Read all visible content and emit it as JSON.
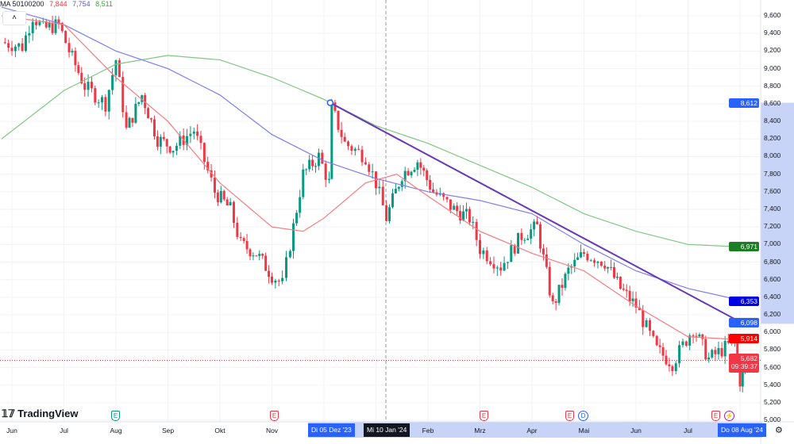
{
  "legend": {
    "label": "MA 50100200",
    "ma50": "7,844",
    "ma100": "7,754",
    "ma200": "8,511",
    "collapse_icon": "chevron-up-icon"
  },
  "colors": {
    "up": "#089981",
    "down": "#f23645",
    "ma50": "#f77c80",
    "ma100": "#7e7ef0",
    "ma200": "#81c784",
    "trend": "#673ab7",
    "highlight": "#c7d3f7"
  },
  "price_axis": [
    "9,600",
    "9,400",
    "9,200",
    "9,000",
    "8,800",
    "8,600",
    "8,400",
    "8,200",
    "8,000",
    "7,800",
    "7,600",
    "7,400",
    "7,200",
    "7,000",
    "6,800",
    "6,600",
    "6,400",
    "6,200",
    "6,000",
    "5,800",
    "5,600",
    "5,400",
    "5,200",
    "5,000"
  ],
  "price_tags": {
    "trend_start": "8,612",
    "ma200": "6,971",
    "ma100": "6,353",
    "trend_end": "6,098",
    "ma50": "5,914",
    "last": "5,682",
    "countdown": "09:39:37"
  },
  "time_axis": [
    "Jun",
    "Jul",
    "Aug",
    "Sep",
    "Okt",
    "Nov",
    "Feb",
    "Mrz",
    "Apr",
    "Mai",
    "Jun",
    "Jul"
  ],
  "time_tags": {
    "start": "Di 05 Dez '23",
    "cursor": "Mi 10 Jan '24",
    "end": "Do 08 Aug '24"
  },
  "logo": "TradingView",
  "events": [
    {
      "t": "E",
      "c": "#089981"
    },
    {
      "t": "E",
      "c": "#f23645"
    },
    {
      "t": "E",
      "c": "#f23645"
    },
    {
      "t": "E",
      "c": "#f23645"
    },
    {
      "t": "D",
      "c": "#2962ff"
    },
    {
      "t": "E",
      "c": "#f23645"
    },
    {
      "t": "⚡",
      "c": "#9c27b0"
    }
  ],
  "chart_data": {
    "type": "candlestick",
    "time_unit": "months since Jun 2023",
    "price_range": [
      5000,
      9600
    ],
    "close_path": [
      [
        -0.2,
        9300
      ],
      [
        0.2,
        9250
      ],
      [
        0.4,
        9600
      ],
      [
        0.6,
        9450
      ],
      [
        0.9,
        9500
      ],
      [
        1.1,
        9200
      ],
      [
        1.4,
        8800
      ],
      [
        1.8,
        8600
      ],
      [
        2.0,
        9100
      ],
      [
        2.2,
        8300
      ],
      [
        2.5,
        8700
      ],
      [
        2.8,
        8200
      ],
      [
        3.1,
        8100
      ],
      [
        3.5,
        8300
      ],
      [
        3.9,
        7600
      ],
      [
        4.2,
        7400
      ],
      [
        4.4,
        7000
      ],
      [
        4.7,
        6900
      ],
      [
        5.0,
        6650
      ],
      [
        5.2,
        6550
      ],
      [
        5.35,
        7000
      ],
      [
        5.6,
        7800
      ],
      [
        5.9,
        8000
      ],
      [
        6.1,
        7700
      ],
      [
        6.15,
        8550
      ],
      [
        6.4,
        8150
      ],
      [
        6.8,
        8000
      ],
      [
        7.0,
        7700
      ],
      [
        7.2,
        7300
      ],
      [
        7.5,
        7800
      ],
      [
        7.8,
        7950
      ],
      [
        8.1,
        7600
      ],
      [
        8.5,
        7400
      ],
      [
        8.8,
        7300
      ],
      [
        9.0,
        6950
      ],
      [
        9.4,
        6750
      ],
      [
        9.8,
        7100
      ],
      [
        10.1,
        7200
      ],
      [
        10.4,
        6300
      ],
      [
        10.7,
        6700
      ],
      [
        11.0,
        6900
      ],
      [
        11.4,
        6800
      ],
      [
        11.7,
        6500
      ],
      [
        12.0,
        6300
      ],
      [
        12.4,
        5800
      ],
      [
        12.7,
        5650
      ],
      [
        13.1,
        6050
      ],
      [
        13.4,
        5700
      ],
      [
        13.9,
        5900
      ],
      [
        14.0,
        5450
      ],
      [
        14.1,
        5682
      ]
    ],
    "ma50": [
      [
        -0.2,
        9600
      ],
      [
        1,
        9500
      ],
      [
        2,
        8900
      ],
      [
        3,
        8400
      ],
      [
        4,
        7700
      ],
      [
        5,
        7200
      ],
      [
        5.6,
        7150
      ],
      [
        6,
        7300
      ],
      [
        6.8,
        7700
      ],
      [
        7.4,
        7800
      ],
      [
        8,
        7550
      ],
      [
        9,
        7150
      ],
      [
        10,
        6900
      ],
      [
        11,
        6700
      ],
      [
        12,
        6300
      ],
      [
        13,
        5950
      ],
      [
        14.1,
        5914
      ]
    ],
    "ma100": [
      [
        -0.2,
        9700
      ],
      [
        1,
        9500
      ],
      [
        2,
        9200
      ],
      [
        3,
        9000
      ],
      [
        4,
        8700
      ],
      [
        5,
        8250
      ],
      [
        6,
        7950
      ],
      [
        7,
        7750
      ],
      [
        8,
        7600
      ],
      [
        9,
        7500
      ],
      [
        10,
        7350
      ],
      [
        11,
        7000
      ],
      [
        12,
        6700
      ],
      [
        13,
        6500
      ],
      [
        14.1,
        6353
      ]
    ],
    "ma200": [
      [
        -0.2,
        8200
      ],
      [
        1,
        8750
      ],
      [
        2,
        9050
      ],
      [
        3,
        9150
      ],
      [
        4,
        9100
      ],
      [
        5,
        8900
      ],
      [
        6,
        8650
      ],
      [
        7,
        8350
      ],
      [
        8,
        8150
      ],
      [
        9,
        7900
      ],
      [
        10,
        7650
      ],
      [
        11,
        7350
      ],
      [
        12,
        7150
      ],
      [
        13,
        7000
      ],
      [
        14.1,
        6971
      ]
    ],
    "trendline": [
      [
        6.12,
        8612
      ],
      [
        14.07,
        6098
      ]
    ]
  }
}
